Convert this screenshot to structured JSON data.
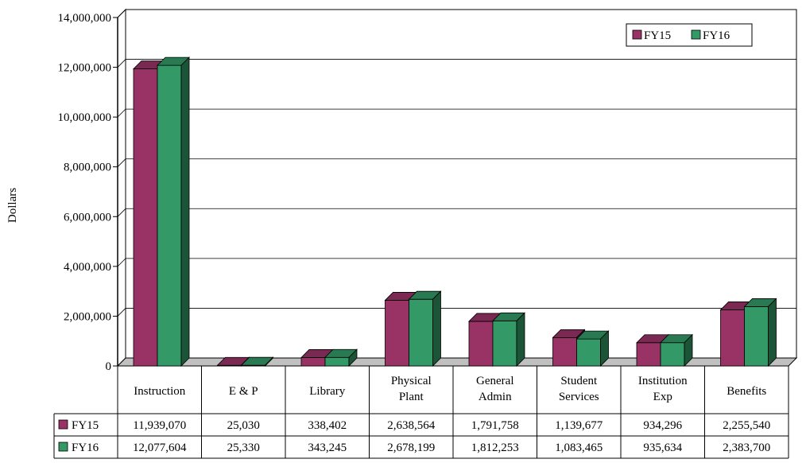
{
  "chart_data": {
    "type": "bar",
    "ylabel": "Dollars",
    "ylim": [
      0,
      14000000
    ],
    "y_ticks": [
      "0",
      "2,000,000",
      "4,000,000",
      "6,000,000",
      "8,000,000",
      "10,000,000",
      "12,000,000",
      "14,000,000"
    ],
    "categories": [
      [
        "Instruction"
      ],
      [
        "E & P"
      ],
      [
        "Library"
      ],
      [
        "Physical",
        "Plant"
      ],
      [
        "General",
        "Admin"
      ],
      [
        "Student",
        "Services"
      ],
      [
        "Institution",
        "Exp"
      ],
      [
        "Benefits"
      ]
    ],
    "series": [
      {
        "name": "FY15",
        "color": "#993366",
        "values": [
          11939070,
          25030,
          338402,
          2638564,
          1791758,
          1139677,
          934296,
          2255540
        ],
        "labels": [
          "11,939,070",
          "25,030",
          "338,402",
          "2,638,564",
          "1,791,758",
          "1,139,677",
          "934,296",
          "2,255,540"
        ]
      },
      {
        "name": "FY16",
        "color": "#339966",
        "values": [
          12077604,
          25330,
          343245,
          2678199,
          1812253,
          1083465,
          935634,
          2383700
        ],
        "labels": [
          "12,077,604",
          "25,330",
          "343,245",
          "2,678,199",
          "1,812,253",
          "1,083,465",
          "935,634",
          "2,383,700"
        ]
      }
    ],
    "grid": true,
    "legend_position": "top-right",
    "data_table": true
  }
}
